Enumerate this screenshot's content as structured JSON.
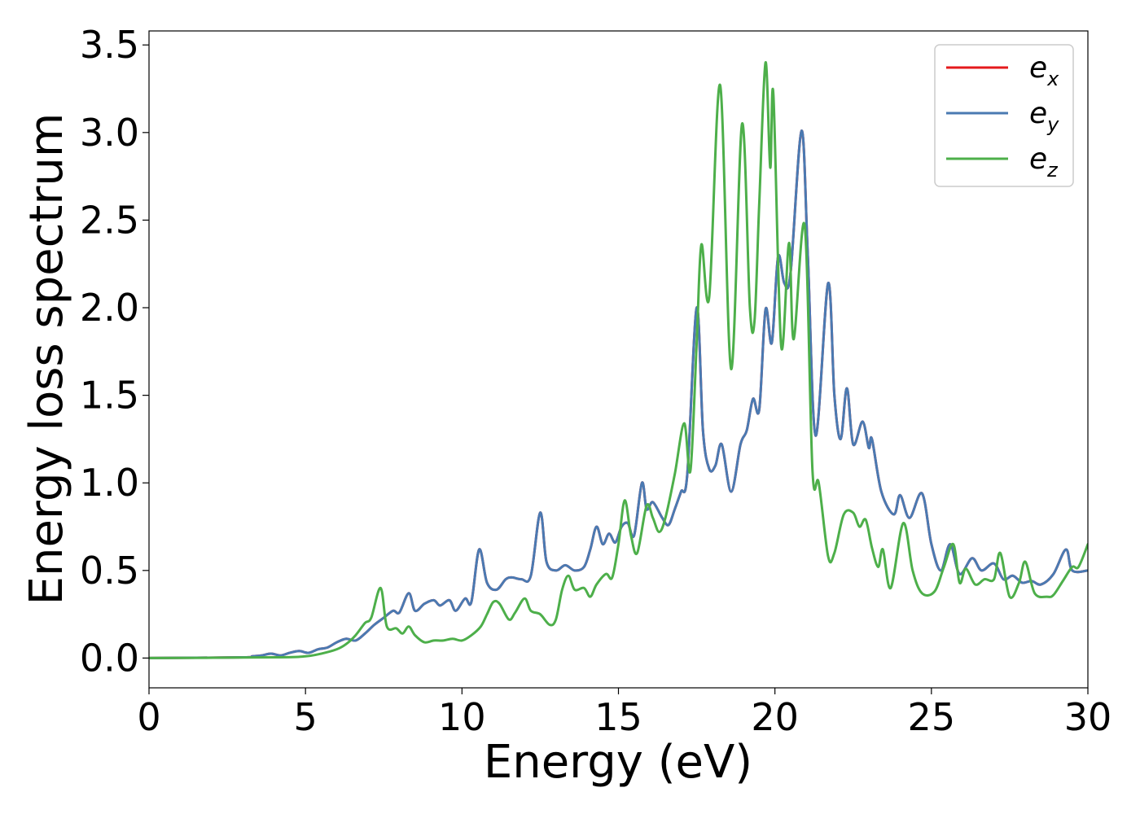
{
  "chart_data": {
    "type": "line",
    "title": "",
    "xlabel": "Energy (eV)",
    "ylabel": "Energy loss spectrum",
    "xlim": [
      0,
      30
    ],
    "ylim": [
      -0.17,
      3.58
    ],
    "xticks": [
      0,
      5,
      10,
      15,
      20,
      25,
      30
    ],
    "xtick_labels": [
      "0",
      "5",
      "10",
      "15",
      "20",
      "25",
      "30"
    ],
    "yticks": [
      0,
      0.5,
      1,
      1.5,
      2,
      2.5,
      3,
      3.5
    ],
    "ytick_labels": [
      "0.0",
      "0.5",
      "1.0",
      "1.5",
      "2.0",
      "2.5",
      "3.0",
      "3.5"
    ],
    "grid": false,
    "legend_position": "top-right",
    "series": [
      {
        "name": "e_x",
        "legend_base": "e",
        "legend_sub": "x",
        "color": "#e41a1c",
        "points": [
          [
            0,
            0
          ],
          [
            3,
            0.004
          ],
          [
            3.3,
            0.01
          ],
          [
            3.6,
            0.015
          ],
          [
            3.9,
            0.025
          ],
          [
            4.2,
            0.015
          ],
          [
            4.5,
            0.03
          ],
          [
            4.8,
            0.04
          ],
          [
            5.1,
            0.03
          ],
          [
            5.4,
            0.05
          ],
          [
            5.7,
            0.06
          ],
          [
            6.0,
            0.09
          ],
          [
            6.3,
            0.11
          ],
          [
            6.6,
            0.1
          ],
          [
            6.9,
            0.14
          ],
          [
            7.2,
            0.19
          ],
          [
            7.5,
            0.23
          ],
          [
            7.8,
            0.27
          ],
          [
            8.0,
            0.26
          ],
          [
            8.3,
            0.37
          ],
          [
            8.5,
            0.27
          ],
          [
            8.8,
            0.31
          ],
          [
            9.1,
            0.33
          ],
          [
            9.3,
            0.3
          ],
          [
            9.6,
            0.33
          ],
          [
            9.8,
            0.27
          ],
          [
            10.1,
            0.34
          ],
          [
            10.3,
            0.32
          ],
          [
            10.55,
            0.62
          ],
          [
            10.8,
            0.43
          ],
          [
            11.1,
            0.39
          ],
          [
            11.4,
            0.45
          ],
          [
            11.6,
            0.46
          ],
          [
            11.9,
            0.45
          ],
          [
            12.2,
            0.47
          ],
          [
            12.5,
            0.83
          ],
          [
            12.7,
            0.55
          ],
          [
            13.0,
            0.5
          ],
          [
            13.3,
            0.53
          ],
          [
            13.6,
            0.5
          ],
          [
            13.9,
            0.52
          ],
          [
            14.1,
            0.62
          ],
          [
            14.3,
            0.75
          ],
          [
            14.5,
            0.65
          ],
          [
            14.7,
            0.71
          ],
          [
            14.9,
            0.66
          ],
          [
            15.1,
            0.75
          ],
          [
            15.3,
            0.77
          ],
          [
            15.5,
            0.7
          ],
          [
            15.75,
            1.0
          ],
          [
            15.9,
            0.85
          ],
          [
            16.1,
            0.89
          ],
          [
            16.4,
            0.8
          ],
          [
            16.6,
            0.76
          ],
          [
            16.8,
            0.85
          ],
          [
            17.0,
            0.95
          ],
          [
            17.2,
            1.05
          ],
          [
            17.5,
            2.0
          ],
          [
            17.7,
            1.3
          ],
          [
            17.9,
            1.08
          ],
          [
            18.1,
            1.1
          ],
          [
            18.3,
            1.22
          ],
          [
            18.6,
            0.95
          ],
          [
            18.9,
            1.22
          ],
          [
            19.1,
            1.3
          ],
          [
            19.3,
            1.48
          ],
          [
            19.5,
            1.42
          ],
          [
            19.7,
            1.99
          ],
          [
            19.9,
            1.8
          ],
          [
            20.1,
            2.29
          ],
          [
            20.3,
            2.14
          ],
          [
            20.5,
            2.2
          ],
          [
            20.85,
            3.01
          ],
          [
            21.05,
            2.3
          ],
          [
            21.3,
            1.27
          ],
          [
            21.7,
            2.14
          ],
          [
            21.9,
            1.5
          ],
          [
            22.1,
            1.25
          ],
          [
            22.3,
            1.54
          ],
          [
            22.5,
            1.22
          ],
          [
            22.8,
            1.35
          ],
          [
            23.0,
            1.2
          ],
          [
            23.1,
            1.25
          ],
          [
            23.4,
            0.95
          ],
          [
            23.8,
            0.82
          ],
          [
            24.0,
            0.93
          ],
          [
            24.3,
            0.8
          ],
          [
            24.7,
            0.94
          ],
          [
            25.0,
            0.65
          ],
          [
            25.3,
            0.5
          ],
          [
            25.6,
            0.65
          ],
          [
            25.9,
            0.48
          ],
          [
            26.3,
            0.57
          ],
          [
            26.6,
            0.5
          ],
          [
            27.0,
            0.54
          ],
          [
            27.3,
            0.45
          ],
          [
            27.6,
            0.47
          ],
          [
            27.9,
            0.43
          ],
          [
            28.2,
            0.44
          ],
          [
            28.5,
            0.42
          ],
          [
            28.9,
            0.48
          ],
          [
            29.3,
            0.62
          ],
          [
            29.5,
            0.5
          ],
          [
            30,
            0.5
          ]
        ]
      },
      {
        "name": "e_y",
        "legend_base": "e",
        "legend_sub": "y",
        "color": "#4a7ab2",
        "points": [
          [
            0,
            0
          ],
          [
            3,
            0.004
          ],
          [
            3.3,
            0.01
          ],
          [
            3.6,
            0.015
          ],
          [
            3.9,
            0.025
          ],
          [
            4.2,
            0.015
          ],
          [
            4.5,
            0.03
          ],
          [
            4.8,
            0.04
          ],
          [
            5.1,
            0.03
          ],
          [
            5.4,
            0.05
          ],
          [
            5.7,
            0.06
          ],
          [
            6.0,
            0.09
          ],
          [
            6.3,
            0.11
          ],
          [
            6.6,
            0.1
          ],
          [
            6.9,
            0.14
          ],
          [
            7.2,
            0.19
          ],
          [
            7.5,
            0.23
          ],
          [
            7.8,
            0.27
          ],
          [
            8.0,
            0.26
          ],
          [
            8.3,
            0.37
          ],
          [
            8.5,
            0.27
          ],
          [
            8.8,
            0.31
          ],
          [
            9.1,
            0.33
          ],
          [
            9.3,
            0.3
          ],
          [
            9.6,
            0.33
          ],
          [
            9.8,
            0.27
          ],
          [
            10.1,
            0.34
          ],
          [
            10.3,
            0.32
          ],
          [
            10.55,
            0.62
          ],
          [
            10.8,
            0.43
          ],
          [
            11.1,
            0.39
          ],
          [
            11.4,
            0.45
          ],
          [
            11.6,
            0.46
          ],
          [
            11.9,
            0.45
          ],
          [
            12.2,
            0.47
          ],
          [
            12.5,
            0.83
          ],
          [
            12.7,
            0.55
          ],
          [
            13.0,
            0.5
          ],
          [
            13.3,
            0.53
          ],
          [
            13.6,
            0.5
          ],
          [
            13.9,
            0.52
          ],
          [
            14.1,
            0.62
          ],
          [
            14.3,
            0.75
          ],
          [
            14.5,
            0.65
          ],
          [
            14.7,
            0.71
          ],
          [
            14.9,
            0.66
          ],
          [
            15.1,
            0.75
          ],
          [
            15.3,
            0.77
          ],
          [
            15.5,
            0.7
          ],
          [
            15.75,
            1.0
          ],
          [
            15.9,
            0.85
          ],
          [
            16.1,
            0.89
          ],
          [
            16.4,
            0.8
          ],
          [
            16.6,
            0.76
          ],
          [
            16.8,
            0.85
          ],
          [
            17.0,
            0.95
          ],
          [
            17.2,
            1.05
          ],
          [
            17.5,
            2.0
          ],
          [
            17.7,
            1.3
          ],
          [
            17.9,
            1.08
          ],
          [
            18.1,
            1.1
          ],
          [
            18.3,
            1.22
          ],
          [
            18.6,
            0.95
          ],
          [
            18.9,
            1.22
          ],
          [
            19.1,
            1.3
          ],
          [
            19.3,
            1.48
          ],
          [
            19.5,
            1.42
          ],
          [
            19.7,
            1.99
          ],
          [
            19.9,
            1.8
          ],
          [
            20.1,
            2.29
          ],
          [
            20.3,
            2.14
          ],
          [
            20.5,
            2.2
          ],
          [
            20.85,
            3.01
          ],
          [
            21.05,
            2.3
          ],
          [
            21.3,
            1.27
          ],
          [
            21.7,
            2.14
          ],
          [
            21.9,
            1.5
          ],
          [
            22.1,
            1.25
          ],
          [
            22.3,
            1.54
          ],
          [
            22.5,
            1.22
          ],
          [
            22.8,
            1.35
          ],
          [
            23.0,
            1.2
          ],
          [
            23.1,
            1.25
          ],
          [
            23.4,
            0.95
          ],
          [
            23.8,
            0.82
          ],
          [
            24.0,
            0.93
          ],
          [
            24.3,
            0.8
          ],
          [
            24.7,
            0.94
          ],
          [
            25.0,
            0.65
          ],
          [
            25.3,
            0.5
          ],
          [
            25.6,
            0.65
          ],
          [
            25.9,
            0.48
          ],
          [
            26.3,
            0.57
          ],
          [
            26.6,
            0.5
          ],
          [
            27.0,
            0.54
          ],
          [
            27.3,
            0.45
          ],
          [
            27.6,
            0.47
          ],
          [
            27.9,
            0.43
          ],
          [
            28.2,
            0.44
          ],
          [
            28.5,
            0.42
          ],
          [
            28.9,
            0.48
          ],
          [
            29.3,
            0.62
          ],
          [
            29.5,
            0.5
          ],
          [
            30,
            0.5
          ]
        ]
      },
      {
        "name": "e_z",
        "legend_base": "e",
        "legend_sub": "z",
        "color": "#4daf4a",
        "points": [
          [
            0,
            0
          ],
          [
            4,
            0.004
          ],
          [
            5,
            0.01
          ],
          [
            5.5,
            0.025
          ],
          [
            6.0,
            0.05
          ],
          [
            6.3,
            0.08
          ],
          [
            6.6,
            0.13
          ],
          [
            6.9,
            0.2
          ],
          [
            7.1,
            0.23
          ],
          [
            7.4,
            0.4
          ],
          [
            7.6,
            0.18
          ],
          [
            7.9,
            0.17
          ],
          [
            8.1,
            0.14
          ],
          [
            8.3,
            0.18
          ],
          [
            8.5,
            0.13
          ],
          [
            8.8,
            0.09
          ],
          [
            9.1,
            0.1
          ],
          [
            9.4,
            0.1
          ],
          [
            9.7,
            0.11
          ],
          [
            10.0,
            0.1
          ],
          [
            10.3,
            0.13
          ],
          [
            10.6,
            0.18
          ],
          [
            10.8,
            0.25
          ],
          [
            11.0,
            0.32
          ],
          [
            11.2,
            0.31
          ],
          [
            11.5,
            0.22
          ],
          [
            11.7,
            0.26
          ],
          [
            12.0,
            0.34
          ],
          [
            12.2,
            0.27
          ],
          [
            12.5,
            0.25
          ],
          [
            12.8,
            0.19
          ],
          [
            13.0,
            0.22
          ],
          [
            13.2,
            0.39
          ],
          [
            13.4,
            0.47
          ],
          [
            13.6,
            0.39
          ],
          [
            13.9,
            0.4
          ],
          [
            14.1,
            0.35
          ],
          [
            14.3,
            0.42
          ],
          [
            14.6,
            0.48
          ],
          [
            14.8,
            0.46
          ],
          [
            15.0,
            0.65
          ],
          [
            15.2,
            0.9
          ],
          [
            15.4,
            0.7
          ],
          [
            15.6,
            0.6
          ],
          [
            15.9,
            0.87
          ],
          [
            16.1,
            0.8
          ],
          [
            16.3,
            0.72
          ],
          [
            16.5,
            0.8
          ],
          [
            16.8,
            1.05
          ],
          [
            17.1,
            1.34
          ],
          [
            17.3,
            1.07
          ],
          [
            17.5,
            1.8
          ],
          [
            17.65,
            2.36
          ],
          [
            17.9,
            2.06
          ],
          [
            18.25,
            3.27
          ],
          [
            18.6,
            1.65
          ],
          [
            18.95,
            3.05
          ],
          [
            19.2,
            2.0
          ],
          [
            19.35,
            1.93
          ],
          [
            19.5,
            2.6
          ],
          [
            19.7,
            3.4
          ],
          [
            19.85,
            2.8
          ],
          [
            19.95,
            3.22
          ],
          [
            20.2,
            1.78
          ],
          [
            20.45,
            2.37
          ],
          [
            20.6,
            1.82
          ],
          [
            20.95,
            2.47
          ],
          [
            21.2,
            1.07
          ],
          [
            21.4,
            1.0
          ],
          [
            21.7,
            0.58
          ],
          [
            21.9,
            0.6
          ],
          [
            22.2,
            0.82
          ],
          [
            22.5,
            0.83
          ],
          [
            22.7,
            0.75
          ],
          [
            22.9,
            0.79
          ],
          [
            23.1,
            0.63
          ],
          [
            23.3,
            0.52
          ],
          [
            23.45,
            0.62
          ],
          [
            23.7,
            0.4
          ],
          [
            24.1,
            0.77
          ],
          [
            24.4,
            0.5
          ],
          [
            24.7,
            0.37
          ],
          [
            25.1,
            0.38
          ],
          [
            25.4,
            0.52
          ],
          [
            25.7,
            0.65
          ],
          [
            25.9,
            0.43
          ],
          [
            26.1,
            0.51
          ],
          [
            26.4,
            0.42
          ],
          [
            26.7,
            0.45
          ],
          [
            27.0,
            0.45
          ],
          [
            27.2,
            0.6
          ],
          [
            27.5,
            0.35
          ],
          [
            27.8,
            0.43
          ],
          [
            28.0,
            0.55
          ],
          [
            28.3,
            0.37
          ],
          [
            28.7,
            0.35
          ],
          [
            28.9,
            0.36
          ],
          [
            29.2,
            0.44
          ],
          [
            29.5,
            0.52
          ],
          [
            29.7,
            0.52
          ],
          [
            30,
            0.65
          ]
        ]
      }
    ]
  }
}
